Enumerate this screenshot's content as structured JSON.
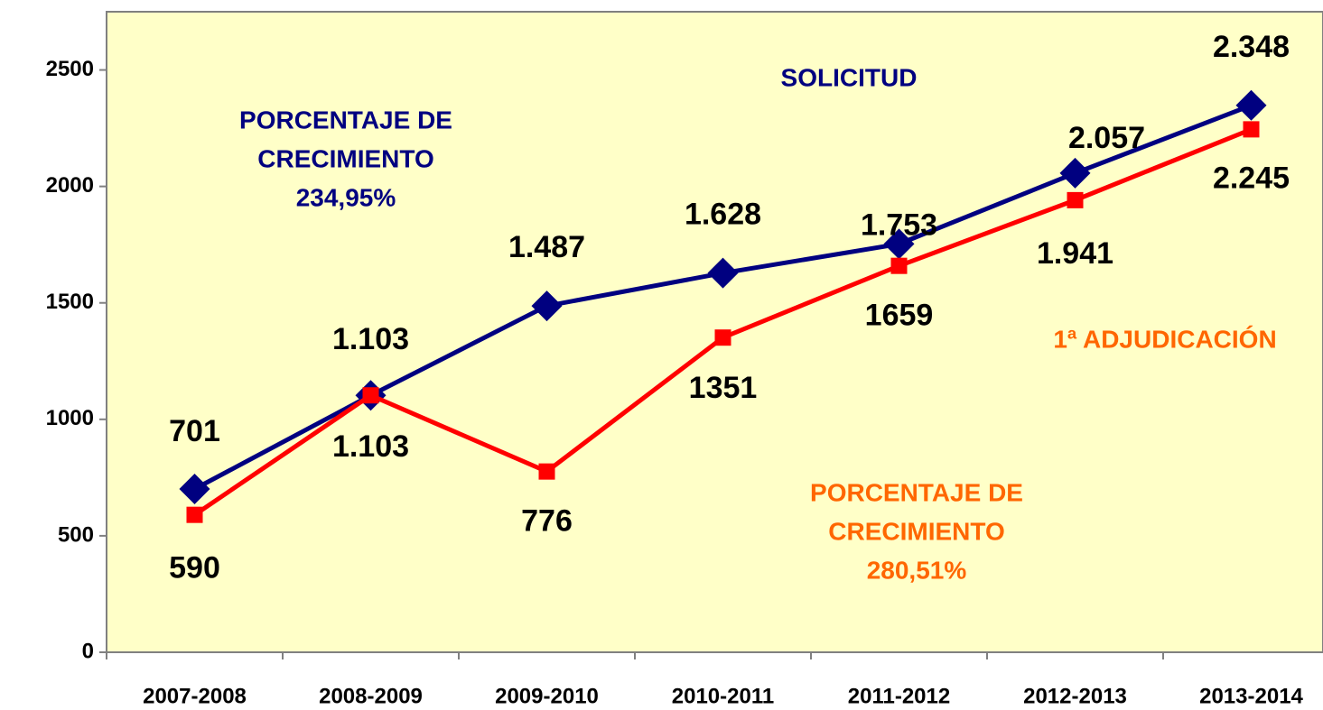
{
  "chart_data": {
    "type": "line",
    "categories": [
      "2007-2008",
      "2008-2009",
      "2009-2010",
      "2010-2011",
      "2011-2012",
      "2012-2013",
      "2013-2014"
    ],
    "series": [
      {
        "name": "SOLICITUD",
        "color": "#000080",
        "marker": "diamond",
        "values": [
          701,
          1103,
          1487,
          1628,
          1753,
          2057,
          2348
        ],
        "value_labels": [
          "701",
          "1.103",
          "1.487",
          "1.628",
          "1.753",
          "2.057",
          "2.348"
        ]
      },
      {
        "name": "1ª ADJUDICACIÓN",
        "color": "#ff0000",
        "marker": "square",
        "values": [
          590,
          1103,
          776,
          1351,
          1659,
          1941,
          2245
        ],
        "value_labels": [
          "590",
          "1.103",
          "776",
          "1351",
          "1659",
          "1.941",
          "2.245"
        ]
      }
    ],
    "annotations": [
      {
        "lines": [
          "PORCENTAJE DE",
          "CRECIMIENTO",
          "234,95%"
        ],
        "color": "#000080"
      },
      {
        "lines": [
          "PORCENTAJE DE",
          "CRECIMIENTO",
          "280,51%"
        ],
        "color": "#ff6600"
      }
    ],
    "ylim": [
      0,
      2750
    ],
    "yticks": [
      0,
      500,
      1000,
      1500,
      2000,
      2500
    ]
  }
}
